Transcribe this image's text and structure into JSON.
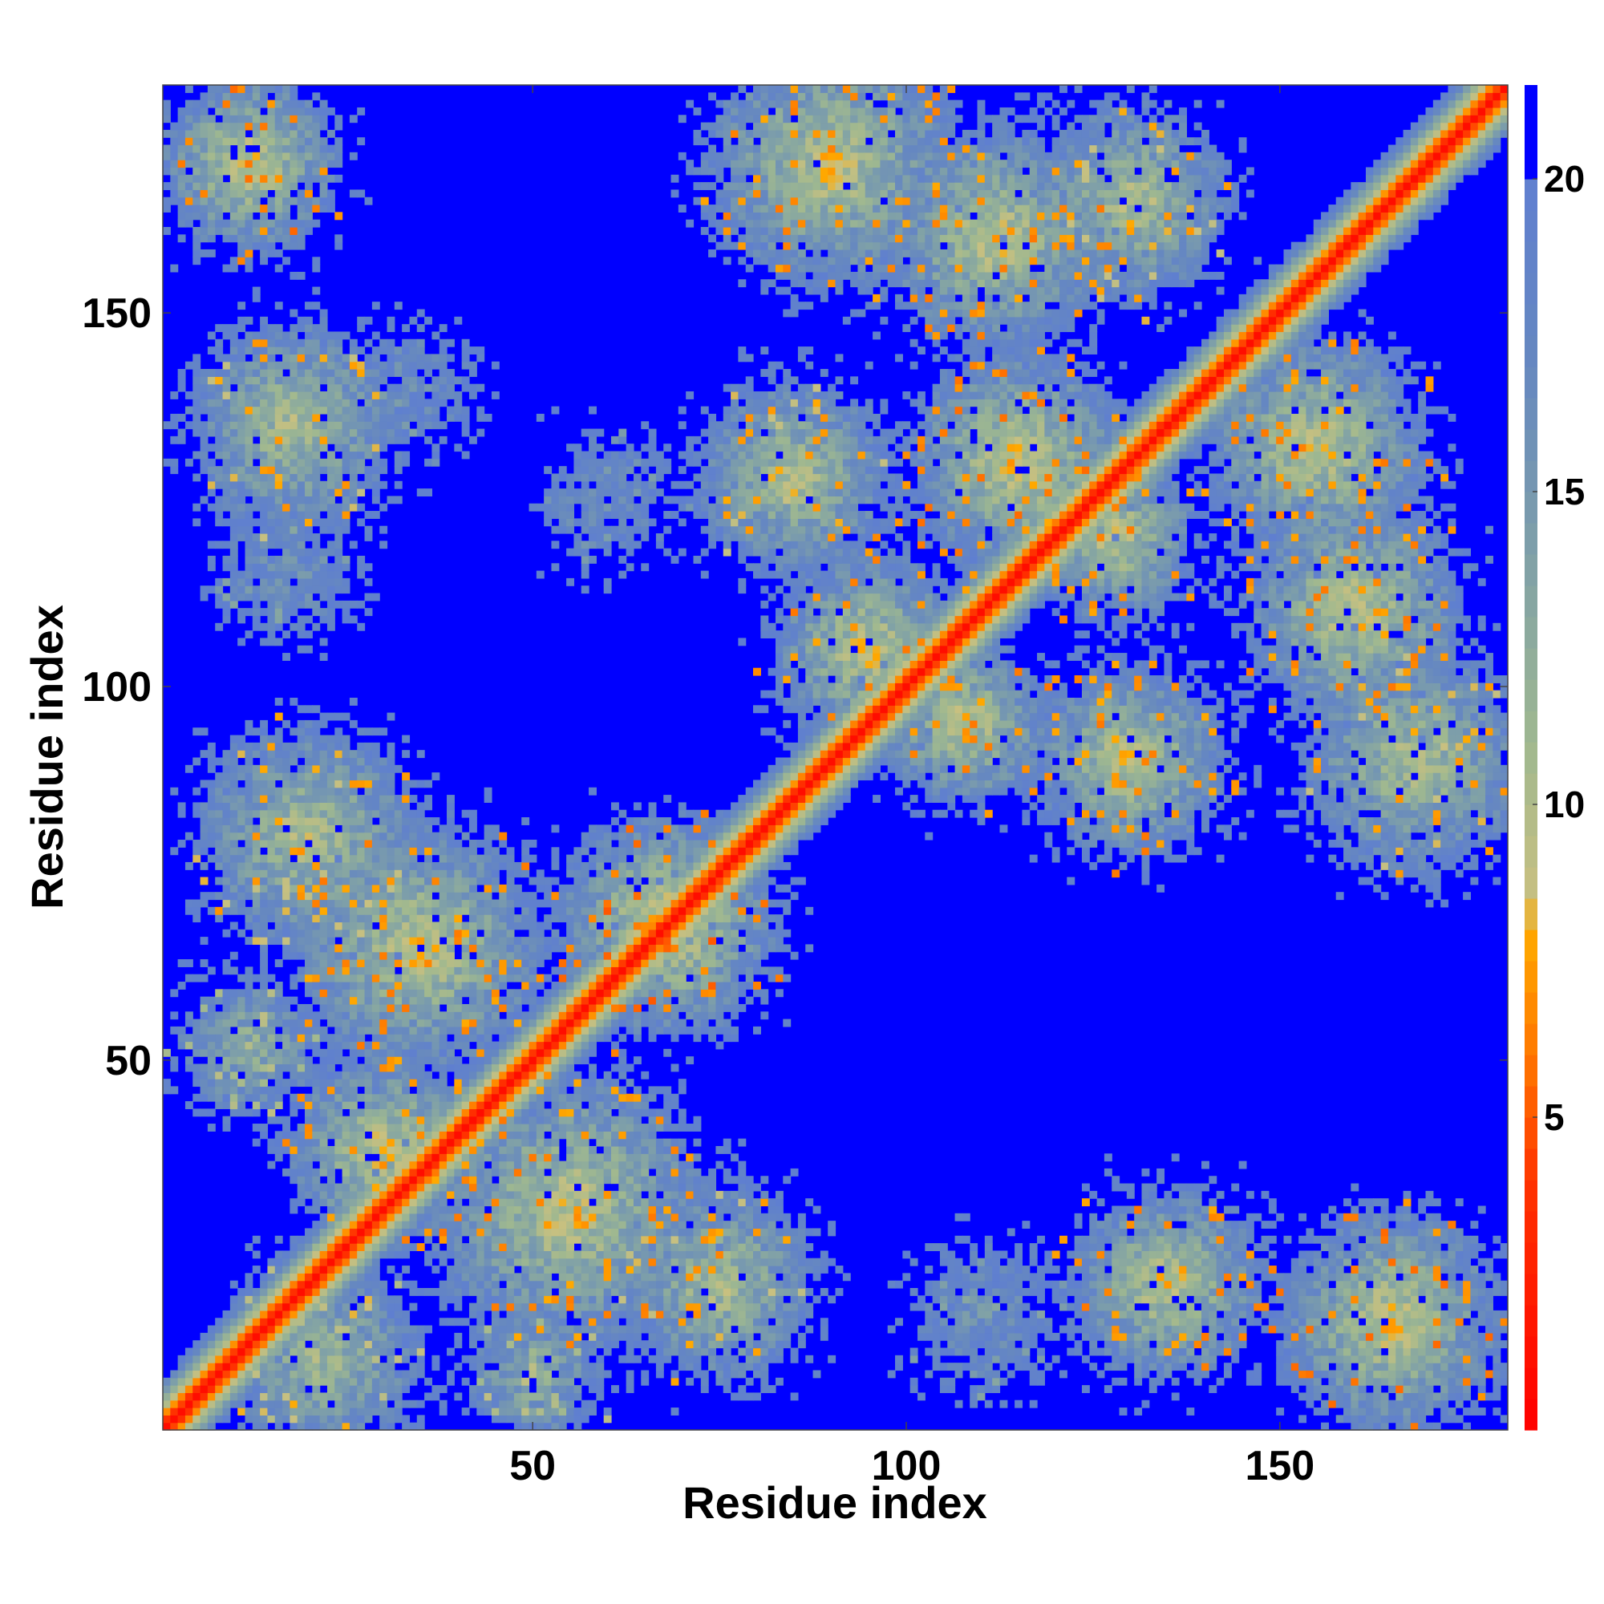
{
  "chart_data": {
    "type": "heatmap",
    "title": "",
    "xlabel": "Residue index",
    "ylabel": "Residue index",
    "n_residues": 180,
    "xlim": [
      1,
      180
    ],
    "ylim": [
      1,
      180
    ],
    "x_ticks": [
      50,
      100,
      150
    ],
    "y_ticks": [
      50,
      100,
      150
    ],
    "colorbar": {
      "ticks": [
        5,
        10,
        15,
        20
      ],
      "range": [
        0,
        21.5
      ],
      "saturate_above": 20,
      "saturate_color": "#0000ff",
      "stops": [
        {
          "value": 0,
          "color": "#ff0000"
        },
        {
          "value": 4,
          "color": "#ff3300"
        },
        {
          "value": 6,
          "color": "#ff7700"
        },
        {
          "value": 8,
          "color": "#ffaa00"
        },
        {
          "value": 8.5,
          "color": "#c8c080"
        },
        {
          "value": 11,
          "color": "#9fb890"
        },
        {
          "value": 14,
          "color": "#7fa0a8"
        },
        {
          "value": 17,
          "color": "#6688c0"
        },
        {
          "value": 20,
          "color": "#5f7fd0"
        }
      ]
    },
    "clusters": [
      {
        "cx": 12,
        "cy": 170,
        "r": 13,
        "core": 8.5
      },
      {
        "cx": 18,
        "cy": 135,
        "r": 15,
        "core": 10
      },
      {
        "cx": 17,
        "cy": 115,
        "r": 9,
        "core": 16
      },
      {
        "cx": 20,
        "cy": 80,
        "r": 16,
        "core": 10
      },
      {
        "cx": 35,
        "cy": 65,
        "r": 18,
        "core": 9
      },
      {
        "cx": 12,
        "cy": 52,
        "r": 10,
        "core": 12
      },
      {
        "cx": 30,
        "cy": 38,
        "r": 14,
        "core": 9
      },
      {
        "cx": 55,
        "cy": 30,
        "r": 20,
        "core": 9
      },
      {
        "cx": 75,
        "cy": 20,
        "r": 14,
        "core": 10
      },
      {
        "cx": 22,
        "cy": 10,
        "r": 14,
        "core": 11
      },
      {
        "cx": 50,
        "cy": 8,
        "r": 10,
        "core": 12
      },
      {
        "cx": 68,
        "cy": 68,
        "r": 16,
        "core": 8
      },
      {
        "cx": 90,
        "cy": 170,
        "r": 18,
        "core": 9
      },
      {
        "cx": 112,
        "cy": 160,
        "r": 16,
        "core": 9
      },
      {
        "cx": 130,
        "cy": 165,
        "r": 14,
        "core": 10
      },
      {
        "cx": 85,
        "cy": 128,
        "r": 14,
        "core": 10
      },
      {
        "cx": 115,
        "cy": 130,
        "r": 16,
        "core": 8.5
      },
      {
        "cx": 95,
        "cy": 105,
        "r": 14,
        "core": 9
      },
      {
        "cx": 108,
        "cy": 95,
        "r": 12,
        "core": 9
      },
      {
        "cx": 128,
        "cy": 120,
        "r": 12,
        "core": 9
      },
      {
        "cx": 130,
        "cy": 90,
        "r": 14,
        "core": 9
      },
      {
        "cx": 155,
        "cy": 132,
        "r": 16,
        "core": 9
      },
      {
        "cx": 160,
        "cy": 110,
        "r": 16,
        "core": 9
      },
      {
        "cx": 168,
        "cy": 90,
        "r": 16,
        "core": 10
      },
      {
        "cx": 135,
        "cy": 20,
        "r": 14,
        "core": 9
      },
      {
        "cx": 165,
        "cy": 15,
        "r": 16,
        "core": 8.5
      },
      {
        "cx": 110,
        "cy": 16,
        "r": 10,
        "core": 16
      },
      {
        "cx": 60,
        "cy": 125,
        "r": 9,
        "core": 17
      },
      {
        "cx": 35,
        "cy": 140,
        "r": 8,
        "core": 17
      }
    ],
    "diagonal": {
      "core_value": 1.5,
      "slope": 2.6
    }
  }
}
